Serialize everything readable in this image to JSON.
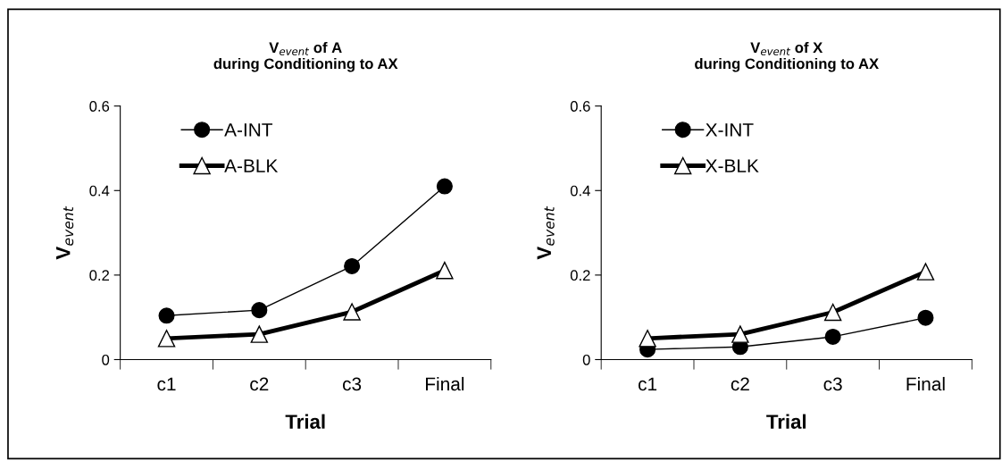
{
  "chart_data": [
    {
      "type": "line",
      "title": "V$_{event}$ of A\nduring Conditioning to AX",
      "xlabel": "Trial",
      "ylabel": "V$_{event}$",
      "categories": [
        "c1",
        "c2",
        "c3",
        "Final"
      ],
      "ylim": [
        0,
        0.6
      ],
      "yticks": [
        0,
        0.2,
        0.4,
        0.6
      ],
      "legend": "top left",
      "grid": false,
      "series": [
        {
          "name": "A-INT",
          "color": "#000000",
          "marker": "circle",
          "values": [
            0.104,
            0.117,
            0.221,
            0.41
          ]
        },
        {
          "name": "A-BLK",
          "color": "#000000",
          "marker": "triangle",
          "values": [
            0.05,
            0.06,
            0.113,
            0.211
          ]
        }
      ]
    },
    {
      "type": "line",
      "title": "V$_{event}$ of X\nduring Conditioning to AX",
      "xlabel": "Trial",
      "ylabel": "V$_{event}$",
      "categories": [
        "c1",
        "c2",
        "c3",
        "Final"
      ],
      "ylim": [
        0,
        0.6
      ],
      "yticks": [
        0,
        0.2,
        0.4,
        0.6
      ],
      "legend": "top left",
      "grid": false,
      "series": [
        {
          "name": "X-INT",
          "color": "#000000",
          "marker": "circle",
          "values": [
            0.024,
            0.03,
            0.054,
            0.099
          ]
        },
        {
          "name": "X-BLK",
          "color": "#000000",
          "marker": "triangle",
          "values": [
            0.05,
            0.06,
            0.112,
            0.208
          ]
        }
      ]
    }
  ]
}
